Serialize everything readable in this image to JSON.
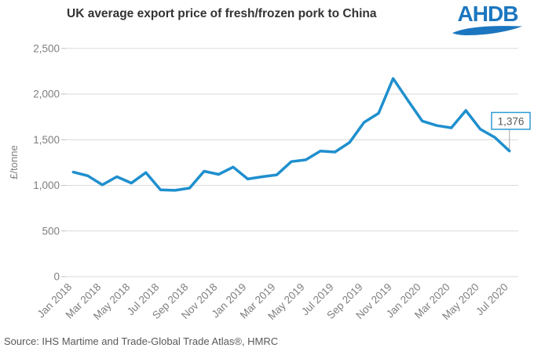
{
  "title": "UK average export price of fresh/frozen pork to China",
  "logo": {
    "text": "AHDB"
  },
  "source": "Source: IHS Martime and Trade-Global Trade Atlas®, HMRC",
  "colors": {
    "line": "#1F8FCE",
    "logo_blue": "#1B76BF",
    "title_text": "#333333",
    "axis_text": "#7F7F7F",
    "gridline": "#D9D9D9",
    "tick": "#BFBFBF",
    "leader": "#A6A6A6",
    "callout_border": "#2E9AD6",
    "callout_text": "#595959",
    "background": "#FFFFFF"
  },
  "chart_data": {
    "type": "line",
    "title": "UK average export price of fresh/frozen pork to China",
    "ylabel": "£/tonne",
    "xlabel": "",
    "ylim": [
      0,
      2500
    ],
    "yticks": [
      0,
      500,
      1000,
      1500,
      2000,
      2500
    ],
    "ytick_labels": [
      "0",
      "500",
      "1,000",
      "1,500",
      "2,000",
      "2,500"
    ],
    "grid": "horizontal-only",
    "x_label_rotation_deg": 45,
    "legend": "none",
    "x": [
      "Jan 2018",
      "Feb 2018",
      "Mar 2018",
      "Apr 2018",
      "May 2018",
      "Jun 2018",
      "Jul 2018",
      "Aug 2018",
      "Sep 2018",
      "Oct 2018",
      "Nov 2018",
      "Dec 2018",
      "Jan 2019",
      "Feb 2019",
      "Mar 2019",
      "Apr 2019",
      "May 2019",
      "Jun 2019",
      "Jul 2019",
      "Aug 2019",
      "Sep 2019",
      "Oct 2019",
      "Nov 2019",
      "Dec 2019",
      "Jan 2020",
      "Feb 2020",
      "Mar 2020",
      "Apr 2020",
      "May 2020",
      "Jun 2020",
      "Jul 2020"
    ],
    "x_tick_labels": [
      "Jan 2018",
      "Mar 2018",
      "May 2018",
      "Jul 2018",
      "Sep 2018",
      "Nov 2018",
      "Jan 2019",
      "Mar 2019",
      "May 2019",
      "Jul 2019",
      "Sep 2019",
      "Nov 2019",
      "Jan 2020",
      "Mar 2020",
      "May 2020",
      "Jul 2020"
    ],
    "series": [
      {
        "name": "UK average export price (£/tonne)",
        "values": [
          1145,
          1105,
          1005,
          1095,
          1025,
          1140,
          950,
          945,
          970,
          1155,
          1120,
          1200,
          1070,
          1095,
          1115,
          1260,
          1280,
          1375,
          1365,
          1470,
          1690,
          1790,
          2170,
          1935,
          1705,
          1655,
          1630,
          1820,
          1615,
          1525,
          1376
        ]
      }
    ],
    "annotation": {
      "x": "Jul 2020",
      "value": 1376,
      "label": "1,376"
    }
  }
}
